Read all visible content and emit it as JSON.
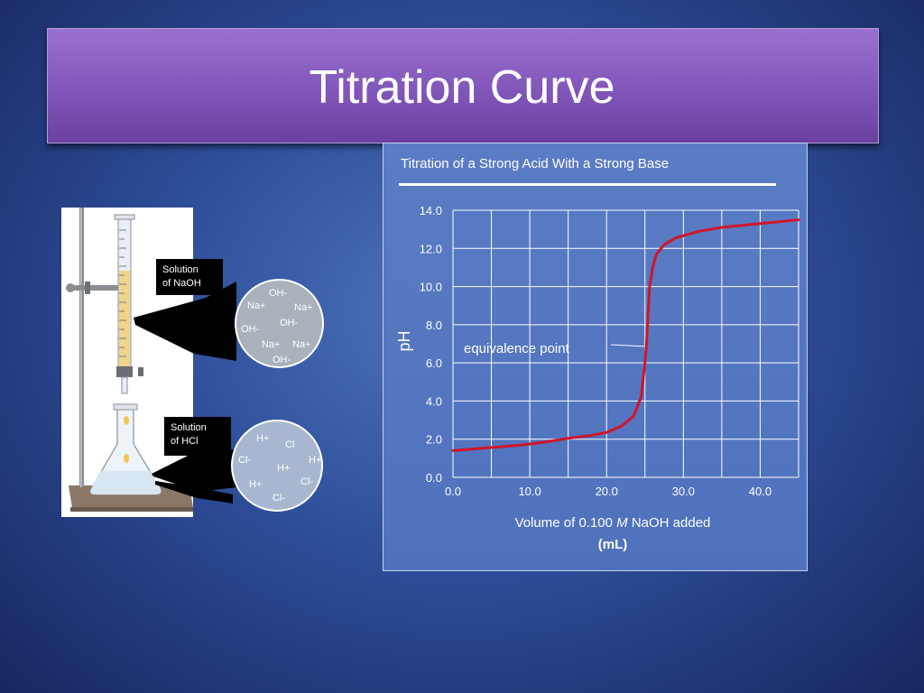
{
  "slide": {
    "title": "Titration Curve"
  },
  "apparatus": {
    "burette_label_line1": "Solution",
    "burette_label_line2": "of NaOH",
    "flask_label_line1": "Solution",
    "flask_label_line2": "of HCl",
    "naoh_ions": [
      "OH-",
      "Na+",
      "Na+",
      "OH-",
      "OH-",
      "Na+",
      "Na+",
      "OH-"
    ],
    "hcl_ions": [
      "H+",
      "Cl",
      "Cl-",
      "H+",
      "H+",
      "Cl-",
      "H+",
      "Cl-"
    ]
  },
  "chart_data": {
    "type": "line",
    "title": "Titration of a Strong Acid With a Strong Base",
    "xlabel": "Volume of 0.100 M NaOH added (mL)",
    "xlabel_parts": {
      "before": "Volume of 0.100 ",
      "italic": "M",
      "after": " NaOH added",
      "line2": "(mL)"
    },
    "ylabel": "pH",
    "xlim": [
      0,
      45
    ],
    "ylim": [
      0,
      14
    ],
    "x_ticks": [
      "0.0",
      "10.0",
      "20.0",
      "30.0",
      "40.0"
    ],
    "y_ticks": [
      "0.0",
      "2.0",
      "4.0",
      "6.0",
      "8.0",
      "10.0",
      "12.0",
      "14.0"
    ],
    "grid": true,
    "annotation": "equivalence point",
    "line_color": "#d0152a",
    "series": [
      {
        "x": [
          0,
          3,
          6,
          9,
          12,
          15,
          18,
          20,
          22,
          23.5,
          24.5,
          25,
          25.2,
          25.4,
          25.6,
          26,
          26.5,
          27.5,
          29,
          32,
          35,
          40,
          45
        ],
        "y": [
          1.4,
          1.5,
          1.6,
          1.7,
          1.85,
          2.05,
          2.2,
          2.35,
          2.7,
          3.2,
          4.2,
          6.0,
          7.0,
          8.5,
          10.0,
          11.0,
          11.7,
          12.2,
          12.55,
          12.9,
          13.1,
          13.3,
          13.5
        ]
      }
    ]
  }
}
